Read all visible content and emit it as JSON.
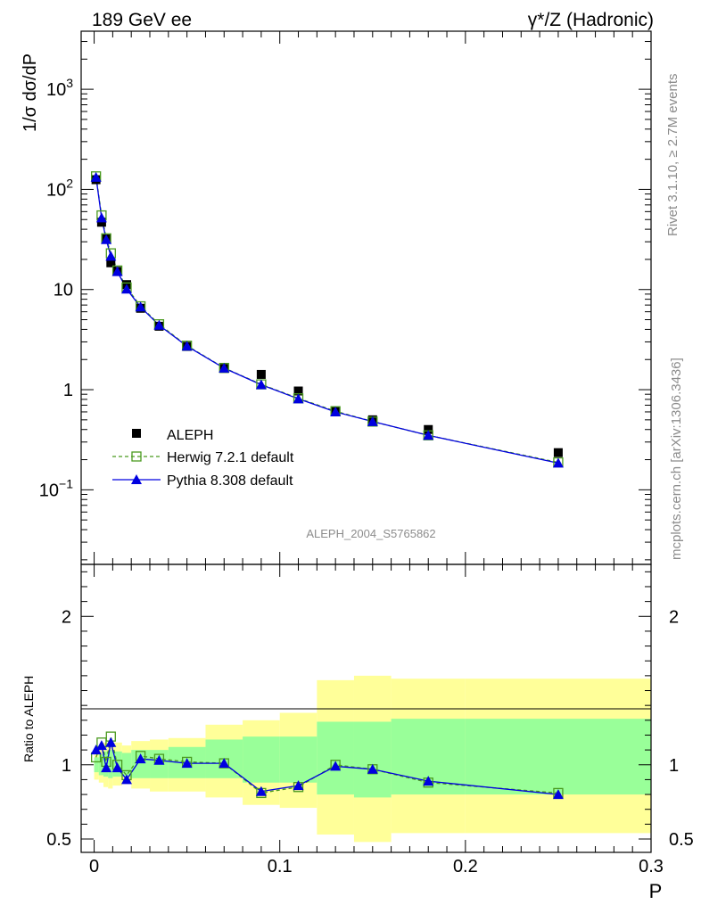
{
  "header": {
    "left": "189 GeV ee",
    "right": "γ*/Z (Hadronic)"
  },
  "side_labels": {
    "rivet": "Rivet 3.1.10, ≥ 2.7M events",
    "mcplots": "mcplots.cern.ch [arXiv:1306.3436]"
  },
  "watermark": "ALEPH_2004_S5765862",
  "chart_data": [
    {
      "type": "scatter",
      "ylabel": "1/σ  dσ/dP",
      "yscale": "log",
      "xlim": [
        -0.007,
        0.3
      ],
      "ylim": [
        0.018,
        3800
      ],
      "y_ticks": [
        {
          "value": 0.1,
          "label": "10",
          "sup": "−1"
        },
        {
          "value": 1,
          "label": "1",
          "sup": ""
        },
        {
          "value": 10,
          "label": "10",
          "sup": ""
        },
        {
          "value": 100,
          "label": "10",
          "sup": "2"
        },
        {
          "value": 1000,
          "label": "10",
          "sup": "3"
        }
      ],
      "legend_position": "lower-left",
      "series": [
        {
          "name": "ALEPH",
          "color": "#000000",
          "marker": "filled-square",
          "x": [
            0.001,
            0.004,
            0.0065,
            0.009,
            0.0125,
            0.0175,
            0.025,
            0.035,
            0.05,
            0.07,
            0.09,
            0.11,
            0.13,
            0.15,
            0.18,
            0.25
          ],
          "y": [
            125,
            47,
            32,
            18.5,
            15.2,
            11.2,
            6.5,
            4.3,
            2.7,
            1.63,
            1.42,
            0.97,
            0.61,
            0.5,
            0.4,
            0.235
          ]
        },
        {
          "name": "Herwig 7.2.1 default",
          "color": "#4a9a1f",
          "marker": "open-square",
          "line": "dashed",
          "x": [
            0.001,
            0.004,
            0.0065,
            0.009,
            0.0125,
            0.0175,
            0.025,
            0.035,
            0.05,
            0.07,
            0.09,
            0.11,
            0.13,
            0.15,
            0.18,
            0.25
          ],
          "y": [
            135,
            55,
            32.5,
            23,
            15.5,
            10.5,
            6.8,
            4.5,
            2.75,
            1.65,
            1.13,
            0.82,
            0.61,
            0.48,
            0.35,
            0.188
          ]
        },
        {
          "name": "Pythia 8.308 default",
          "color": "#0000e0",
          "marker": "filled-triangle",
          "line": "solid",
          "x": [
            0.001,
            0.004,
            0.0065,
            0.009,
            0.0125,
            0.0175,
            0.025,
            0.035,
            0.05,
            0.07,
            0.09,
            0.11,
            0.13,
            0.15,
            0.18,
            0.25
          ],
          "y": [
            132,
            52,
            31.5,
            21.5,
            15.1,
            10.1,
            6.7,
            4.4,
            2.72,
            1.64,
            1.12,
            0.81,
            0.6,
            0.48,
            0.35,
            0.185
          ]
        }
      ]
    },
    {
      "type": "line",
      "ylabel": "Ratio to ALEPH",
      "xlabel": "P",
      "xlim": [
        -0.007,
        0.3
      ],
      "ylim": [
        0.41,
        2.35
      ],
      "y_ticks": [
        0.5,
        1,
        2
      ],
      "x_ticks": [
        0,
        0.1,
        0.2,
        0.3
      ],
      "x_tick_labels": [
        "0",
        "0.1",
        "0.2",
        "0.3"
      ],
      "reference_line": 1,
      "uncertainty_bands": {
        "bins": [
          [
            0,
            0.0025
          ],
          [
            0.0025,
            0.005
          ],
          [
            0.005,
            0.0075
          ],
          [
            0.0075,
            0.01
          ],
          [
            0.01,
            0.015
          ],
          [
            0.015,
            0.02
          ],
          [
            0.02,
            0.03
          ],
          [
            0.03,
            0.04
          ],
          [
            0.04,
            0.06
          ],
          [
            0.06,
            0.08
          ],
          [
            0.08,
            0.1
          ],
          [
            0.1,
            0.12
          ],
          [
            0.12,
            0.14
          ],
          [
            0.14,
            0.16
          ],
          [
            0.16,
            0.2
          ],
          [
            0.2,
            0.3
          ]
        ],
        "inner_low": [
          0.95,
          0.93,
          0.92,
          0.91,
          0.92,
          0.92,
          0.91,
          0.91,
          0.91,
          0.91,
          0.88,
          0.88,
          0.8,
          0.78,
          0.8,
          0.8
        ],
        "inner_high": [
          1.05,
          1.07,
          1.09,
          1.1,
          1.09,
          1.08,
          1.1,
          1.1,
          1.12,
          1.17,
          1.19,
          1.19,
          1.29,
          1.29,
          1.31,
          1.31
        ],
        "outer_low": [
          0.9,
          0.88,
          0.85,
          0.84,
          0.86,
          0.87,
          0.84,
          0.82,
          0.82,
          0.78,
          0.73,
          0.71,
          0.53,
          0.48,
          0.54,
          0.54
        ],
        "outer_high": [
          1.1,
          1.12,
          1.15,
          1.16,
          1.15,
          1.13,
          1.16,
          1.17,
          1.18,
          1.27,
          1.3,
          1.35,
          1.57,
          1.6,
          1.58,
          1.58
        ],
        "inner_color": "#99ff99",
        "outer_color": "#ffff99"
      },
      "series": [
        {
          "name": "Herwig 7.2.1 default",
          "color": "#4a9a1f",
          "x": [
            0.001,
            0.004,
            0.0065,
            0.009,
            0.0125,
            0.0175,
            0.025,
            0.035,
            0.05,
            0.07,
            0.09,
            0.11,
            0.13,
            0.15,
            0.18,
            0.25
          ],
          "y": [
            1.05,
            1.15,
            1.02,
            1.19,
            1.0,
            0.93,
            1.06,
            1.04,
            1.02,
            1.01,
            0.81,
            0.85,
            1.0,
            0.97,
            0.88,
            0.81
          ]
        },
        {
          "name": "Pythia 8.308 default",
          "color": "#0000e0",
          "x": [
            0.001,
            0.004,
            0.0065,
            0.009,
            0.0125,
            0.0175,
            0.025,
            0.035,
            0.05,
            0.07,
            0.09,
            0.11,
            0.13,
            0.15,
            0.18,
            0.25
          ],
          "y": [
            1.1,
            1.13,
            0.98,
            1.15,
            0.98,
            0.9,
            1.04,
            1.03,
            1.01,
            1.01,
            0.82,
            0.86,
            0.99,
            0.97,
            0.89,
            0.8
          ]
        }
      ]
    }
  ]
}
